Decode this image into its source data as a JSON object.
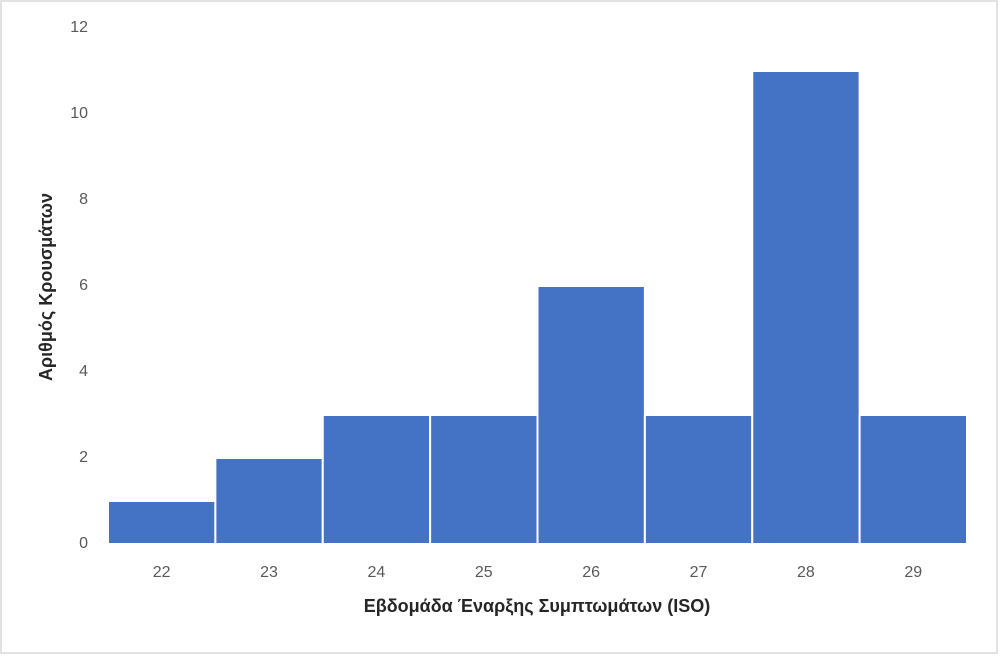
{
  "chart_data": {
    "type": "bar",
    "x_label": "Εβδομάδα Έναρξης Συμπτωμάτων (ISO)",
    "y_label": "Αριθμός Κρουσμάτων",
    "categories": [
      "22",
      "23",
      "24",
      "25",
      "26",
      "27",
      "28",
      "29"
    ],
    "values": [
      1,
      2,
      3,
      3,
      6,
      3,
      11,
      3
    ],
    "color": "#4472c4",
    "ylim": [
      0,
      12
    ],
    "yticks": [
      0,
      2,
      4,
      6,
      8,
      10,
      12
    ],
    "grid": false
  }
}
